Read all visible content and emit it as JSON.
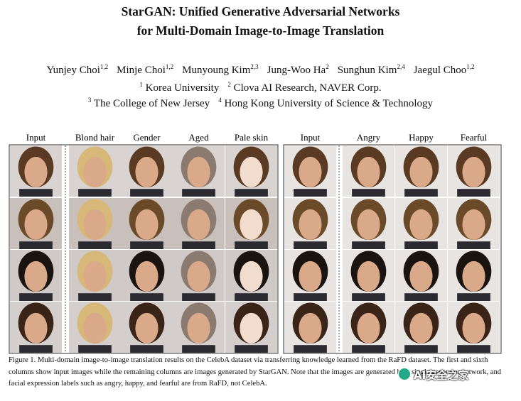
{
  "title": [
    "StarGAN: Unified Generative Adversarial Networks",
    "for Multi-Domain Image-to-Image Translation"
  ],
  "authors": [
    {
      "name": "Yunjey Choi",
      "sup": "1,2"
    },
    {
      "name": "Minje Choi",
      "sup": "1,2"
    },
    {
      "name": "Munyoung Kim",
      "sup": "2,3"
    },
    {
      "name": "Jung-Woo Ha",
      "sup": "2"
    },
    {
      "name": "Sunghun Kim",
      "sup": "2,4"
    },
    {
      "name": "Jaegul Choo",
      "sup": "1,2"
    }
  ],
  "affiliations": [
    [
      {
        "sup": "1",
        "text": "Korea University"
      },
      {
        "sup": "2",
        "text": "Clova AI Research, NAVER Corp."
      }
    ],
    [
      {
        "sup": "3",
        "text": "The College of New Jersey"
      },
      {
        "sup": "4",
        "text": "Hong Kong University of Science & Technology"
      }
    ]
  ],
  "figure": {
    "left_columns": [
      "Input",
      "Blond hair",
      "Gender",
      "Aged",
      "Pale skin"
    ],
    "right_columns": [
      "Input",
      "Angry",
      "Happy",
      "Fearful"
    ]
  },
  "caption": "Figure 1. Multi-domain image-to-image translation results on the CelebA dataset via transferring knowledge learned from the RaFD dataset. The first and sixth columns show input images while the remaining columns are images generated by StarGAN. Note that the images are generated by a single generator network, and facial expression labels such as angry, happy, and fearful are from RaFD, not CelebA.",
  "watermark": "AI安全之家"
}
